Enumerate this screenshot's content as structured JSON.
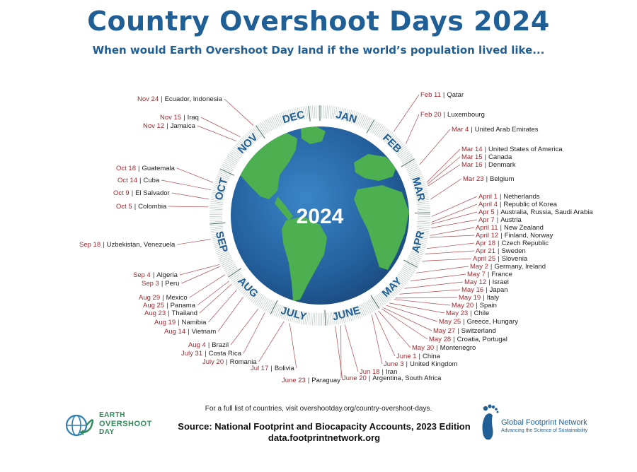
{
  "title": "Country Overshoot Days 2024",
  "subtitle": "When would Earth Overshoot Day land if the world’s population lived like...",
  "year": "2024",
  "months": [
    "JAN",
    "FEB",
    "MAR",
    "APR",
    "MAY",
    "JUNE",
    "JULY",
    "AUG",
    "SEP",
    "OCT",
    "NOV",
    "DEC"
  ],
  "countries": [
    {
      "date": "Feb 11",
      "names": "Qatar"
    },
    {
      "date": "Feb 20",
      "names": "Luxembourg"
    },
    {
      "date": "Mar 4",
      "names": "United Arab Emirates"
    },
    {
      "date": "Mar 14",
      "names": "United States of America"
    },
    {
      "date": "Mar 15",
      "names": "Canada"
    },
    {
      "date": "Mar 16",
      "names": "Denmark"
    },
    {
      "date": "Mar 23",
      "names": "Belgium"
    },
    {
      "date": "April 1",
      "names": "Netherlands"
    },
    {
      "date": "April 4",
      "names": "Republic of Korea"
    },
    {
      "date": "Apr 5",
      "names": "Australia, Russia, Saudi Arabia"
    },
    {
      "date": "Apr 7",
      "names": "Austria"
    },
    {
      "date": "April 11",
      "names": "New Zealand"
    },
    {
      "date": "April 12",
      "names": "Finland, Norway"
    },
    {
      "date": "Apr 18",
      "names": "Czech Republic"
    },
    {
      "date": "Apr 21",
      "names": "Sweden"
    },
    {
      "date": "April 25",
      "names": "Slovenia"
    },
    {
      "date": "May 2",
      "names": "Germany, Ireland"
    },
    {
      "date": "May 7",
      "names": "France"
    },
    {
      "date": "May 12",
      "names": "Israel"
    },
    {
      "date": "May 16",
      "names": "Japan"
    },
    {
      "date": "May 19",
      "names": "Italy"
    },
    {
      "date": "May 20",
      "names": "Spain"
    },
    {
      "date": "May 23",
      "names": "Chile"
    },
    {
      "date": "May 25",
      "names": "Greece, Hungary"
    },
    {
      "date": "May 27",
      "names": "Switzerland"
    },
    {
      "date": "May 28",
      "names": "Croatia, Portugal"
    },
    {
      "date": "May 30",
      "names": "Montenegro"
    },
    {
      "date": "June 1",
      "names": "China"
    },
    {
      "date": "June 3",
      "names": "United Kingdom"
    },
    {
      "date": "Jun 18",
      "names": "Iran"
    },
    {
      "date": "June 20",
      "names": "Argentina, South Africa"
    },
    {
      "date": "June 23",
      "names": "Paraguay"
    },
    {
      "date": "Jul 17",
      "names": "Bolivia"
    },
    {
      "date": "July 20",
      "names": "Romania"
    },
    {
      "date": "July 31",
      "names": "Costa Rica"
    },
    {
      "date": "Aug 4",
      "names": "Brazil"
    },
    {
      "date": "Aug 14",
      "names": "Vietnam"
    },
    {
      "date": "Aug 19",
      "names": "Namibia"
    },
    {
      "date": "Aug 23",
      "names": "Thailand"
    },
    {
      "date": "Aug 25",
      "names": "Panama"
    },
    {
      "date": "Aug 29",
      "names": "Mexico"
    },
    {
      "date": "Sep 3",
      "names": "Peru"
    },
    {
      "date": "Sep 4",
      "names": "Algeria"
    },
    {
      "date": "Sep 18",
      "names": "Uzbekistan, Venezuela"
    },
    {
      "date": "Oct 5",
      "names": "Colombia"
    },
    {
      "date": "Oct 9",
      "names": "El Salvador"
    },
    {
      "date": "Oct 14",
      "names": "Cuba"
    },
    {
      "date": "Oct 18",
      "names": "Guatemala"
    },
    {
      "date": "Nov 12",
      "names": "Jamaica"
    },
    {
      "date": "Nov 15",
      "names": "Iraq"
    },
    {
      "date": "Nov 24",
      "names": "Ecuador, Indonesia"
    }
  ],
  "footer": {
    "visit": "For a full list of countries, visit overshootday.org/country-overshoot-days.",
    "source": "Source: National Footprint and Biocapacity Accounts, 2023 Edition",
    "url": "data.footprintnetwork.org",
    "eod_logo": [
      "EARTH",
      "OVERSHOOT",
      "DAY"
    ],
    "gfn_name": "Global Footprint Network",
    "gfn_tagline": "Advancing the Science of Sustainability"
  },
  "colors": {
    "title": "#1f5f95",
    "date": "#a32a2f",
    "ocean": "#2a6fb0",
    "land": "#4caf50",
    "ring": "#2e6d8e",
    "leader": "#b04a4e"
  }
}
